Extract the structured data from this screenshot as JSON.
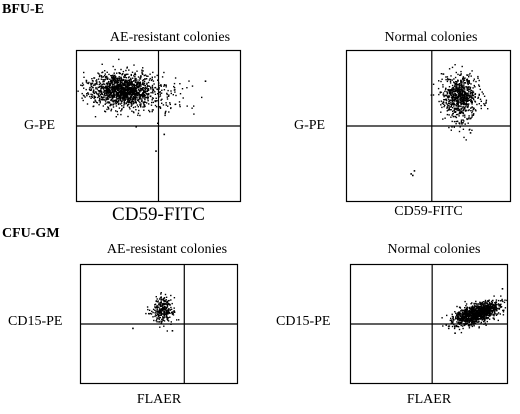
{
  "sections": {
    "top": "BFU-E",
    "bottom": "CFU-GM"
  },
  "chart_data": [
    {
      "type": "scatter",
      "title": "AE-resistant colonies",
      "xlabel": "CD59-FITC",
      "ylabel": "G-PE",
      "clusters": [
        {
          "cx": 0.28,
          "cy": 0.74,
          "sx": 0.095,
          "sy": 0.055,
          "n": 1400
        },
        {
          "cx": 0.55,
          "cy": 0.69,
          "sx": 0.09,
          "sy": 0.06,
          "n": 70
        }
      ],
      "outliers": [
        [
          0.48,
          0.34
        ],
        [
          0.53,
          0.45
        ],
        [
          0.36,
          0.5
        ],
        [
          0.78,
          0.8
        ]
      ],
      "quadrant": [
        0.5,
        0.5
      ]
    },
    {
      "type": "scatter",
      "title": "Normal colonies",
      "xlabel": "CD59-FITC",
      "ylabel": "G-PE",
      "clusters": [
        {
          "cx": 0.69,
          "cy": 0.7,
          "sx": 0.055,
          "sy": 0.065,
          "n": 700
        },
        {
          "cx": 0.69,
          "cy": 0.53,
          "sx": 0.035,
          "sy": 0.05,
          "n": 35
        }
      ],
      "outliers": [
        [
          0.39,
          0.19
        ],
        [
          0.4,
          0.18
        ],
        [
          0.41,
          0.21
        ],
        [
          0.75,
          0.46
        ]
      ],
      "quadrant": [
        0.52,
        0.5
      ]
    },
    {
      "type": "scatter",
      "title": "AE-resistant colonies",
      "xlabel": "FLAER",
      "ylabel": "CD15-PE",
      "clusters": [
        {
          "cx": 0.52,
          "cy": 0.62,
          "sx": 0.035,
          "sy": 0.055,
          "n": 260
        }
      ],
      "outliers": [
        [
          0.33,
          0.47
        ],
        [
          0.58,
          0.45
        ]
      ],
      "quadrant": [
        0.66,
        0.5
      ]
    },
    {
      "type": "scatter",
      "title": "Normal colonies",
      "xlabel": "FLAER",
      "ylabel": "CD15-PE",
      "clusters": [
        {
          "cx": 0.8,
          "cy": 0.59,
          "sx": 0.075,
          "sy": 0.05,
          "n": 1100,
          "corr": 0.6
        }
      ],
      "outliers": [
        [
          0.62,
          0.47
        ],
        [
          0.96,
          0.8
        ],
        [
          0.66,
          0.43
        ]
      ],
      "quadrant": [
        0.52,
        0.5
      ]
    }
  ]
}
